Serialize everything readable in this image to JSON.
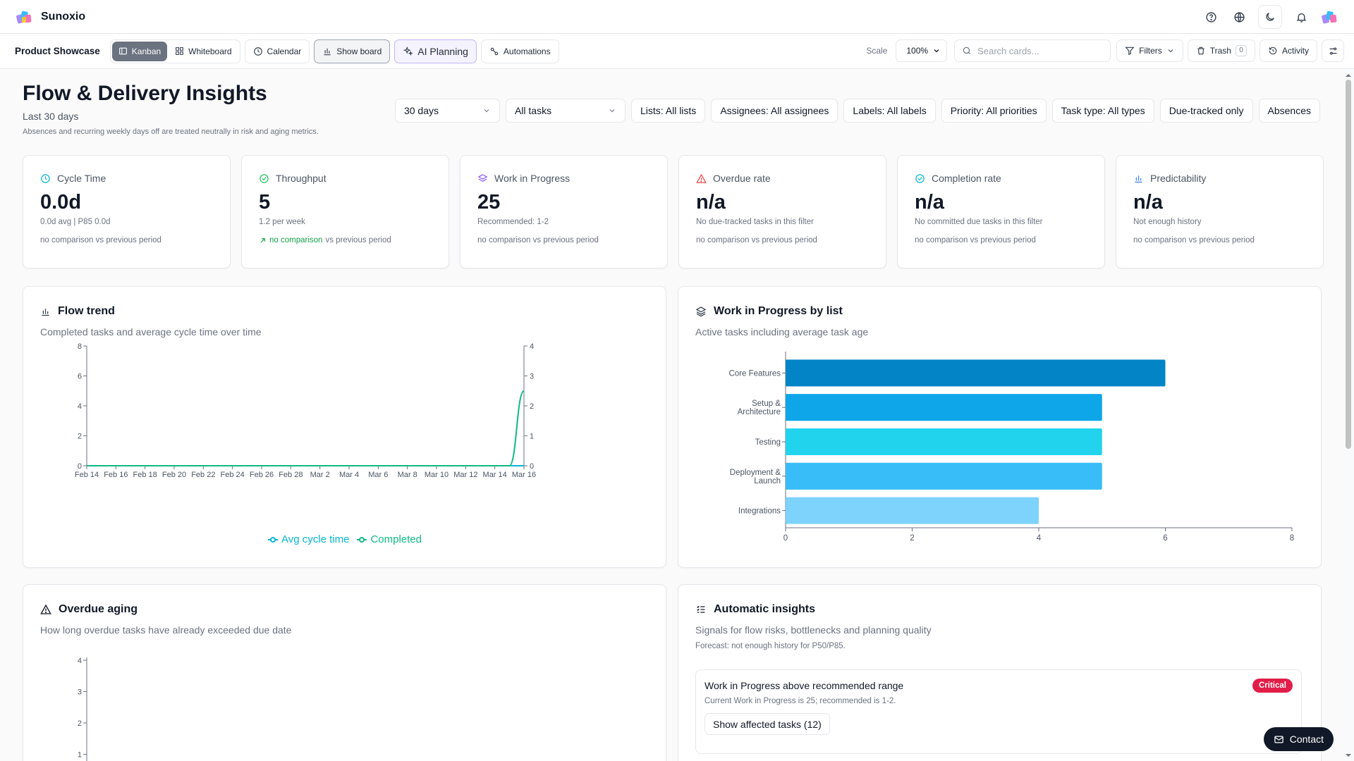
{
  "app": {
    "name": "Sunoxio"
  },
  "toolbar": {
    "project": "Product Showcase",
    "views": {
      "kanban": "Kanban",
      "whiteboard": "Whiteboard"
    },
    "calendar": "Calendar",
    "show_board": "Show board",
    "ai_planning": "AI Planning",
    "automations": "Automations",
    "scale_label": "Scale",
    "scale_value": "100%",
    "search_placeholder": "Search cards...",
    "filters": "Filters",
    "trash": "Trash",
    "trash_count": "0",
    "activity": "Activity"
  },
  "page": {
    "title": "Flow & Delivery Insights",
    "subtitle": "Last 30 days",
    "note": "Absences and recurring weekly days off are treated neutrally in risk and aging metrics.",
    "period": "30 days",
    "scope": "All tasks",
    "pills": [
      "Lists: All lists",
      "Assignees: All assignees",
      "Labels: All labels",
      "Priority: All priorities",
      "Task type: All types",
      "Due-tracked only",
      "Absences"
    ]
  },
  "metrics": [
    {
      "title": "Cycle Time",
      "value": "0.0d",
      "sub": "0.0d avg | P85 0.0d",
      "cmp_lead": "",
      "cmp_rest": "no comparison vs previous period",
      "icon": "clock-icon",
      "color": "#06b6d4"
    },
    {
      "title": "Throughput",
      "value": "5",
      "sub": "1.2 per week",
      "cmp_lead": "no comparison",
      "cmp_rest": " vs previous period",
      "icon": "check-circle-icon",
      "color": "#22c55e"
    },
    {
      "title": "Work in Progress",
      "value": "25",
      "sub": "Recommended: 1-2",
      "cmp_lead": "",
      "cmp_rest": "no comparison vs previous period",
      "icon": "layers-icon",
      "color": "#8b5cf6"
    },
    {
      "title": "Overdue rate",
      "value": "n/a",
      "sub": "No due-tracked tasks in this filter",
      "cmp_lead": "",
      "cmp_rest": "no comparison vs previous period",
      "icon": "warning-icon",
      "color": "#ef4444"
    },
    {
      "title": "Completion rate",
      "value": "n/a",
      "sub": "No committed due tasks in this filter",
      "cmp_lead": "",
      "cmp_rest": "no comparison vs previous period",
      "icon": "check-circle-icon",
      "color": "#06b6d4"
    },
    {
      "title": "Predictability",
      "value": "n/a",
      "sub": "Not enough history",
      "cmp_lead": "",
      "cmp_rest": "no comparison vs previous period",
      "icon": "bar-chart-icon",
      "color": "#3b82f6"
    }
  ],
  "panels": {
    "flow": {
      "title": "Flow trend",
      "subtitle": "Completed tasks and average cycle time over time"
    },
    "wip": {
      "title": "Work in Progress by list",
      "subtitle": "Active tasks including average task age"
    },
    "aging": {
      "title": "Overdue aging",
      "subtitle": "How long overdue tasks have already exceeded due date"
    },
    "auto": {
      "title": "Automatic insights",
      "subtitle": "Signals for flow risks, bottlenecks and planning quality",
      "forecast": "Forecast: not enough history for P50/P85.",
      "insight": {
        "title": "Work in Progress above recommended range",
        "desc": "Current Work in Progress is 25; recommended is 1-2.",
        "badge": "Critical",
        "action": "Show affected tasks (12)"
      }
    }
  },
  "chart_data": [
    {
      "type": "line",
      "x": [
        "Feb 14",
        "Feb 15",
        "Feb 16",
        "Feb 17",
        "Feb 18",
        "Feb 19",
        "Feb 20",
        "Feb 21",
        "Feb 22",
        "Feb 23",
        "Feb 24",
        "Feb 25",
        "Feb 26",
        "Feb 27",
        "Feb 28",
        "Mar 1",
        "Mar 2",
        "Mar 3",
        "Mar 4",
        "Mar 5",
        "Mar 6",
        "Mar 7",
        "Mar 8",
        "Mar 9",
        "Mar 10",
        "Mar 11",
        "Mar 12",
        "Mar 13",
        "Mar 14",
        "Mar 15",
        "Mar 16"
      ],
      "x_tick_labels": [
        "Feb 14",
        "Feb 16",
        "Feb 18",
        "Feb 20",
        "Feb 22",
        "Feb 24",
        "Feb 26",
        "Feb 28",
        "Mar 2",
        "Mar 4",
        "Mar 6",
        "Mar 8",
        "Mar 10",
        "Mar 12",
        "Mar 14",
        "Mar 16"
      ],
      "ylim_left": [
        0,
        8
      ],
      "ylim_right": [
        0,
        4
      ],
      "yticks_left": [
        "0",
        "2",
        "4",
        "6",
        "8"
      ],
      "yticks_right": [
        "0",
        "1",
        "2",
        "3",
        "4"
      ],
      "series": [
        {
          "name": "Avg cycle time",
          "axis": "right",
          "color": "#06b6d4",
          "values": [
            0,
            0,
            0,
            0,
            0,
            0,
            0,
            0,
            0,
            0,
            0,
            0,
            0,
            0,
            0,
            0,
            0,
            0,
            0,
            0,
            0,
            0,
            0,
            0,
            0,
            0,
            0,
            0,
            0,
            0,
            0
          ]
        },
        {
          "name": "Completed",
          "axis": "left",
          "color": "#10b981",
          "values": [
            0,
            0,
            0,
            0,
            0,
            0,
            0,
            0,
            0,
            0,
            0,
            0,
            0,
            0,
            0,
            0,
            0,
            0,
            0,
            0,
            0,
            0,
            0,
            0,
            0,
            0,
            0,
            0,
            0,
            0,
            5
          ]
        }
      ],
      "legend": "bottom",
      "grid": false
    },
    {
      "type": "bar",
      "orientation": "horizontal",
      "categories": [
        [
          "Core Features"
        ],
        [
          "Setup &",
          "Architecture"
        ],
        [
          "Testing"
        ],
        [
          "Deployment &",
          "Launch"
        ],
        [
          "Integrations"
        ]
      ],
      "values": [
        6,
        5,
        5,
        5,
        4
      ],
      "colors": [
        "#0284c7",
        "#0ea5e9",
        "#22d3ee",
        "#38bdf8",
        "#7dd3fc"
      ],
      "xlim": [
        0,
        8
      ],
      "xticks": [
        "0",
        "2",
        "4",
        "6",
        "8"
      ],
      "grid": false
    },
    {
      "type": "bar",
      "ylim": [
        0,
        4
      ],
      "yticks": [
        "1",
        "2",
        "3",
        "4"
      ],
      "values": []
    }
  ],
  "contact": "Contact"
}
